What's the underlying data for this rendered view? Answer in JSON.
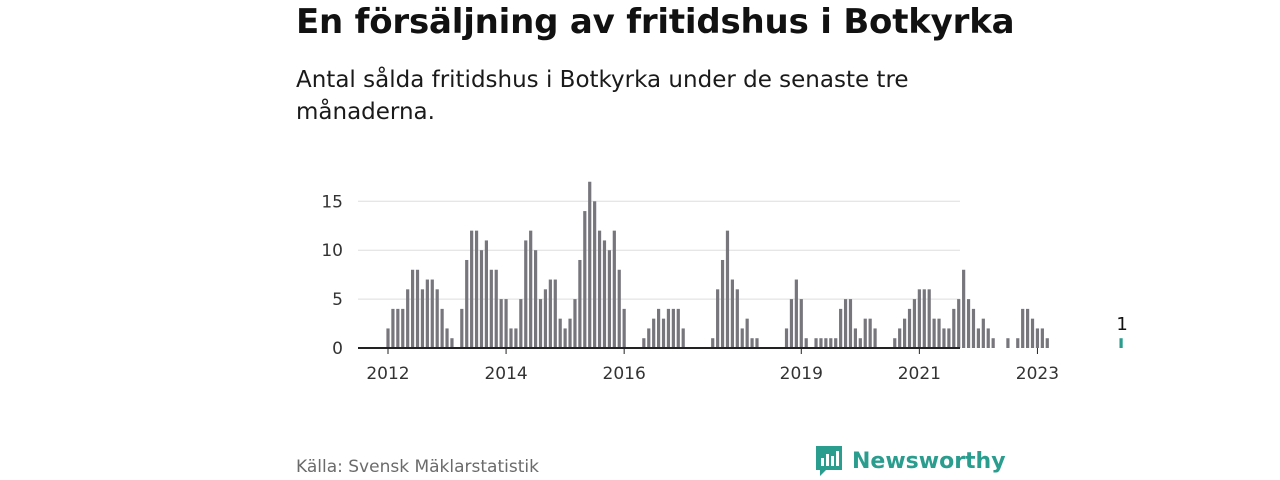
{
  "title": "En försäljning av fritidshus i Botkyrka",
  "subtitle": "Antal sålda fritidshus i Botkyrka under de senaste tre månaderna.",
  "source": "Källa: Svensk Mäklarstatistik",
  "brand": "Newsworthy",
  "colors": {
    "bar": "#77767d",
    "highlight": "#2a9d8f",
    "grid": "#dddddd",
    "axis": "#222222",
    "brand": "#2a9d8f"
  },
  "chart_data": {
    "type": "bar",
    "x_start": "2012-01",
    "x_ticks": [
      "2012",
      "2014",
      "2016",
      "2019",
      "2021",
      "2023"
    ],
    "y_ticks": [
      0,
      5,
      10,
      15
    ],
    "ylim": [
      0,
      18
    ],
    "grid": true,
    "values": [
      2,
      4,
      4,
      4,
      6,
      8,
      8,
      6,
      7,
      7,
      6,
      4,
      2,
      1,
      null,
      4,
      9,
      12,
      12,
      10,
      11,
      8,
      8,
      5,
      5,
      2,
      2,
      5,
      11,
      12,
      10,
      5,
      6,
      7,
      7,
      3,
      2,
      3,
      5,
      9,
      14,
      17,
      15,
      12,
      11,
      10,
      12,
      8,
      4,
      null,
      null,
      null,
      1,
      2,
      3,
      4,
      3,
      4,
      4,
      4,
      2,
      null,
      null,
      null,
      null,
      null,
      1,
      6,
      9,
      12,
      7,
      6,
      2,
      3,
      1,
      1,
      null,
      null,
      null,
      null,
      null,
      2,
      5,
      7,
      5,
      1,
      null,
      1,
      1,
      1,
      1,
      1,
      4,
      5,
      5,
      2,
      1,
      3,
      3,
      2,
      null,
      null,
      null,
      1,
      2,
      3,
      4,
      5,
      6,
      6,
      6,
      3,
      3,
      2,
      2,
      4,
      5,
      8,
      5,
      4,
      2,
      3,
      2,
      1,
      null,
      null,
      1,
      null,
      1,
      4,
      4,
      3,
      2,
      2,
      1,
      null,
      null,
      null,
      null,
      null,
      null,
      null,
      null,
      null,
      null,
      null,
      null,
      null,
      null,
      1
    ],
    "highlight_value": 1,
    "highlight_label": "1"
  }
}
